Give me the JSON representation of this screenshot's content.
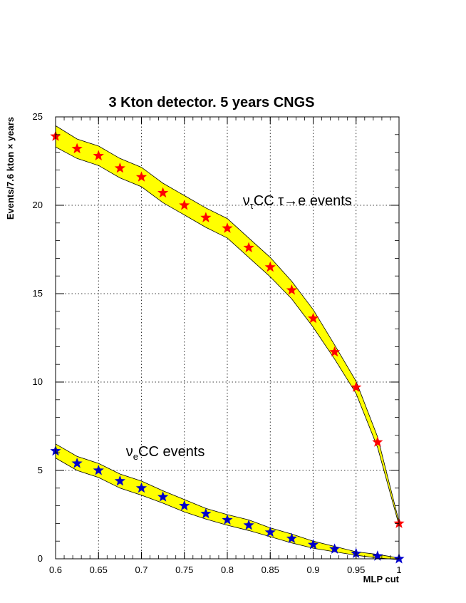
{
  "chart_data": {
    "type": "line",
    "title": "3 Kton detector. 5 years CNGS",
    "xlabel": "MLP cut",
    "ylabel": "Events/7.6 kton × years",
    "xlim": [
      0.6,
      1.0
    ],
    "ylim": [
      0,
      25
    ],
    "xticks": [
      "0.6",
      "0.65",
      "0.7",
      "0.75",
      "0.8",
      "0.85",
      "0.9",
      "0.95",
      "1"
    ],
    "yticks": [
      "0",
      "5",
      "10",
      "15",
      "20",
      "25"
    ],
    "grid": true,
    "band_color": "#ffff00",
    "x": [
      0.6,
      0.625,
      0.65,
      0.675,
      0.7,
      0.725,
      0.75,
      0.775,
      0.8,
      0.825,
      0.85,
      0.875,
      0.9,
      0.925,
      0.95,
      0.975,
      1.0
    ],
    "series": [
      {
        "marker_color": "#ff0000",
        "values": [
          23.9,
          23.2,
          22.8,
          22.1,
          21.6,
          20.7,
          20.0,
          19.3,
          18.7,
          17.6,
          16.5,
          15.2,
          13.6,
          11.7,
          9.7,
          6.6,
          2.0
        ],
        "band_half_width": [
          0.6,
          0.55,
          0.55,
          0.55,
          0.55,
          0.55,
          0.55,
          0.55,
          0.55,
          0.55,
          0.55,
          0.5,
          0.5,
          0.4,
          0.35,
          0.3,
          0.1
        ],
        "annotation": {
          "main1": "ν",
          "sub": "τ",
          "main2": "CC τ→e events",
          "at": [
            0.818,
            20.0
          ]
        }
      },
      {
        "marker_color": "#0000cc",
        "values": [
          6.1,
          5.4,
          5.0,
          4.4,
          4.0,
          3.5,
          3.0,
          2.55,
          2.2,
          1.9,
          1.5,
          1.15,
          0.8,
          0.55,
          0.3,
          0.15,
          0.0
        ],
        "band_half_width": [
          0.4,
          0.4,
          0.4,
          0.4,
          0.4,
          0.35,
          0.35,
          0.3,
          0.3,
          0.3,
          0.25,
          0.25,
          0.2,
          0.15,
          0.1,
          0.1,
          0.05
        ],
        "annotation": {
          "main1": "ν",
          "sub": "e",
          "main2": "CC events",
          "at": [
            0.682,
            5.8
          ]
        }
      }
    ]
  }
}
